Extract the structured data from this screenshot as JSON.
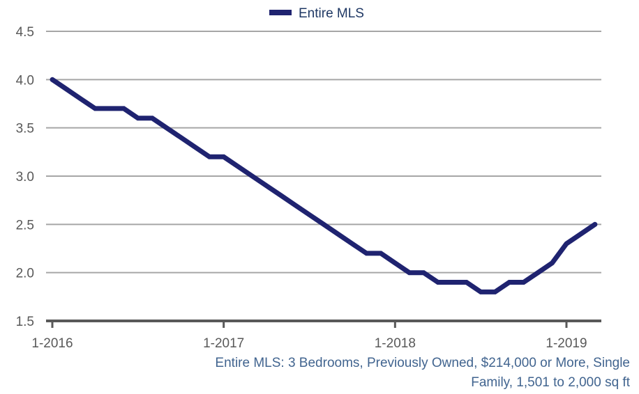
{
  "chart_data": {
    "type": "line",
    "title": "",
    "xlabel": "",
    "ylabel": "",
    "ylim": [
      1.5,
      4.5
    ],
    "yticks": [
      "4.5",
      "4.0",
      "3.5",
      "3.0",
      "2.5",
      "2.0",
      "1.5"
    ],
    "ytick_values": [
      4.5,
      4.0,
      3.5,
      3.0,
      2.5,
      2.0,
      1.5
    ],
    "xticks": [
      "1-2016",
      "1-2017",
      "1-2018",
      "1-2019"
    ],
    "xtick_month_index": [
      0,
      12,
      24,
      36
    ],
    "grid": true,
    "legend_position": "top-center",
    "x": [
      "1-2016",
      "2-2016",
      "3-2016",
      "4-2016",
      "5-2016",
      "6-2016",
      "7-2016",
      "8-2016",
      "9-2016",
      "10-2016",
      "11-2016",
      "12-2016",
      "1-2017",
      "2-2017",
      "3-2017",
      "4-2017",
      "5-2017",
      "6-2017",
      "7-2017",
      "8-2017",
      "9-2017",
      "10-2017",
      "11-2017",
      "12-2017",
      "1-2018",
      "2-2018",
      "3-2018",
      "4-2018",
      "5-2018",
      "6-2018",
      "7-2018",
      "8-2018",
      "9-2018",
      "10-2018",
      "11-2018",
      "12-2018",
      "1-2019",
      "2-2019",
      "3-2019"
    ],
    "series": [
      {
        "name": "Entire MLS",
        "color": "#1f2370",
        "values": [
          4.0,
          3.9,
          3.8,
          3.7,
          3.7,
          3.7,
          3.6,
          3.6,
          3.5,
          3.4,
          3.3,
          3.2,
          3.2,
          3.1,
          3.0,
          2.9,
          2.8,
          2.7,
          2.6,
          2.5,
          2.4,
          2.3,
          2.2,
          2.2,
          2.1,
          2.0,
          2.0,
          1.9,
          1.9,
          1.9,
          1.8,
          1.8,
          1.9,
          1.9,
          2.0,
          2.1,
          2.3,
          2.4,
          2.5
        ]
      }
    ],
    "caption_line1": "Entire MLS: 3 Bedrooms, Previously Owned, $214,000 or More, Single",
    "caption_line2": "Family, 1,501 to 2,000 sq ft"
  }
}
